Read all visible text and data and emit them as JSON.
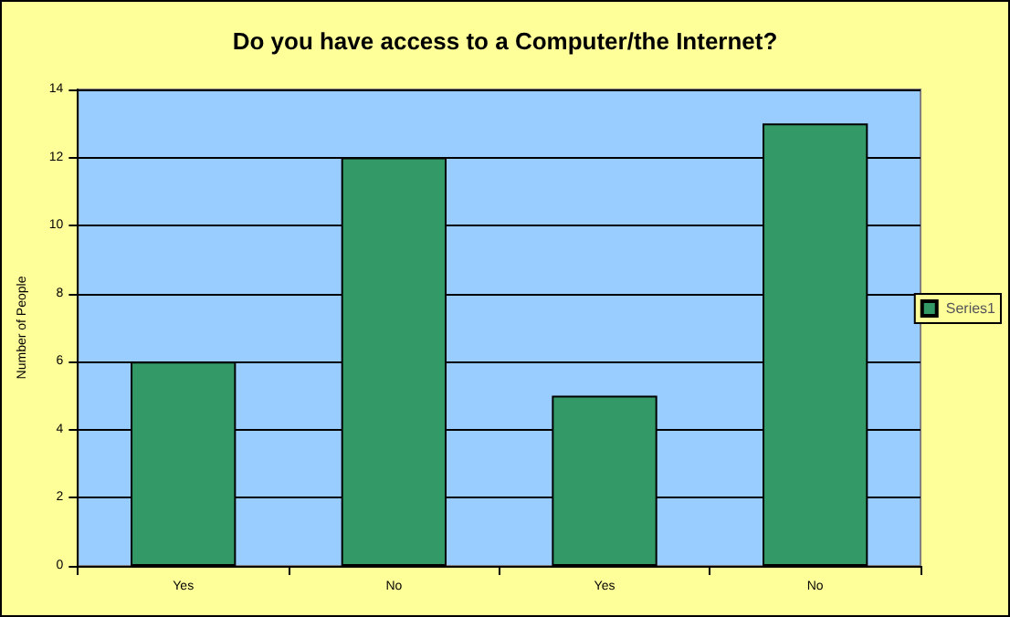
{
  "chart_data": {
    "type": "bar",
    "title": "Do you have access to a Computer/the Internet?",
    "ylabel": "Number of People",
    "categories": [
      "Yes",
      "No",
      "Yes",
      "No"
    ],
    "series": [
      {
        "name": "Series1",
        "color": "#339966",
        "values": [
          6,
          12,
          5,
          13
        ]
      }
    ],
    "ylim": [
      0,
      14
    ],
    "yticks": [
      0,
      2,
      4,
      6,
      8,
      10,
      12,
      14
    ],
    "grid": "y",
    "legend": "right"
  }
}
